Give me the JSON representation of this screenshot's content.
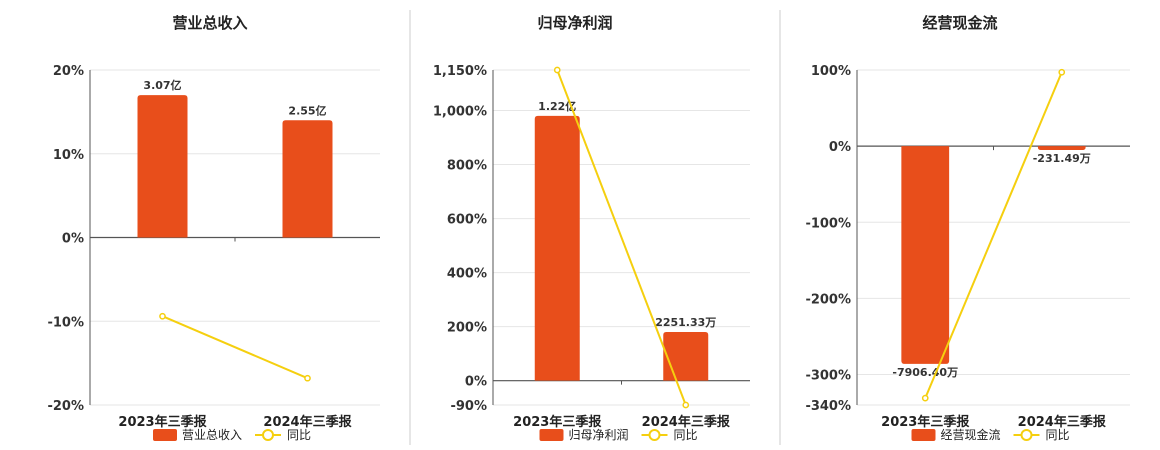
{
  "colors": {
    "bar": "#e84e1b",
    "line": "#f5cf0f",
    "grid": "#e6e6e6",
    "axis": "#555555",
    "divider": "#cccccc"
  },
  "chart_data": [
    {
      "type": "bar",
      "title": "营业总收入",
      "categories": [
        "2023年三季报",
        "2024年三季报"
      ],
      "series": [
        {
          "name": "营业总收入",
          "type": "bar",
          "value_labels": [
            "3.07亿",
            "2.55亿"
          ]
        },
        {
          "name": "同比",
          "type": "line",
          "values": [
            -9.4,
            -16.8
          ]
        }
      ],
      "bar_heights_pct": [
        17,
        14
      ],
      "yticks": [
        "20%",
        "10%",
        "0%",
        "-10%",
        "-20%"
      ],
      "ytick_values": [
        20,
        10,
        0,
        -10,
        -20
      ],
      "ylim": [
        -20,
        20
      ],
      "legend": "bottom-center"
    },
    {
      "type": "bar",
      "title": "归母净利润",
      "categories": [
        "2023年三季报",
        "2024年三季报"
      ],
      "series": [
        {
          "name": "归母净利润",
          "type": "bar",
          "value_labels": [
            "1.22亿",
            "2251.33万"
          ]
        },
        {
          "name": "同比",
          "type": "line",
          "values": [
            1150,
            -90
          ]
        }
      ],
      "bar_heights_pct": [
        980,
        180
      ],
      "yticks": [
        "1,150%",
        "1,000%",
        "800%",
        "600%",
        "400%",
        "200%",
        "0%",
        "-90%"
      ],
      "ytick_values": [
        1150,
        1000,
        800,
        600,
        400,
        200,
        0,
        -90
      ],
      "ylim": [
        -90,
        1150
      ],
      "legend": "bottom-center"
    },
    {
      "type": "bar",
      "title": "经营现金流",
      "categories": [
        "2023年三季报",
        "2024年三季报"
      ],
      "series": [
        {
          "name": "经营现金流",
          "type": "bar",
          "value_labels": [
            "-7906.40万",
            "-231.49万"
          ]
        },
        {
          "name": "同比",
          "type": "line",
          "values": [
            -331,
            97
          ]
        }
      ],
      "bar_heights_pct": [
        -286,
        -5
      ],
      "yticks": [
        "100%",
        "0%",
        "-100%",
        "-200%",
        "-300%",
        "-340%"
      ],
      "ytick_values": [
        100,
        0,
        -100,
        -200,
        -300,
        -340
      ],
      "ylim": [
        -340,
        100
      ],
      "legend": "bottom-center"
    }
  ]
}
